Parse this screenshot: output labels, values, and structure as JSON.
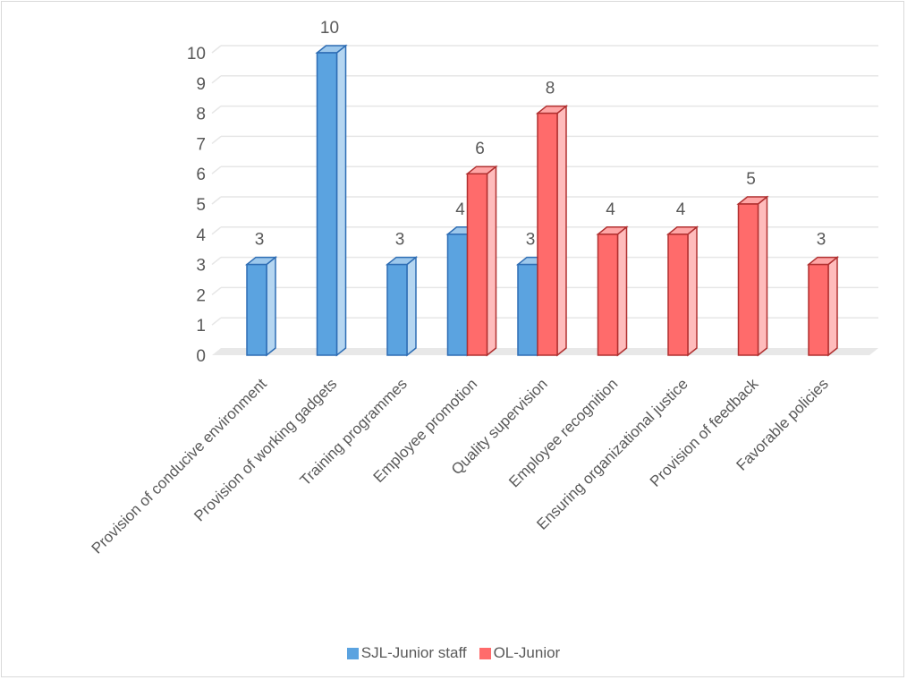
{
  "chart_data": {
    "type": "bar",
    "categories": [
      "Provision of conducive environment",
      "Provision of working gadgets",
      "Training programmes",
      "Employee promotion",
      "Quality supervision",
      "Employee recognition",
      "Ensuring organizational justice",
      "Provision of feedback",
      "Favorable policies"
    ],
    "series": [
      {
        "name": "SJL-Junior staff",
        "values": [
          3,
          10,
          3,
          4,
          3,
          null,
          null,
          null,
          null
        ],
        "color": "#5ba3e0"
      },
      {
        "name": "OL-Junior",
        "values": [
          null,
          null,
          null,
          6,
          8,
          4,
          4,
          5,
          3
        ],
        "color": "#ff6b6b"
      }
    ],
    "ylim": [
      0,
      10
    ],
    "yticks": [
      0,
      1,
      2,
      3,
      4,
      5,
      6,
      7,
      8,
      9,
      10
    ],
    "grid": true,
    "legend_position": "bottom",
    "three_d": true
  }
}
